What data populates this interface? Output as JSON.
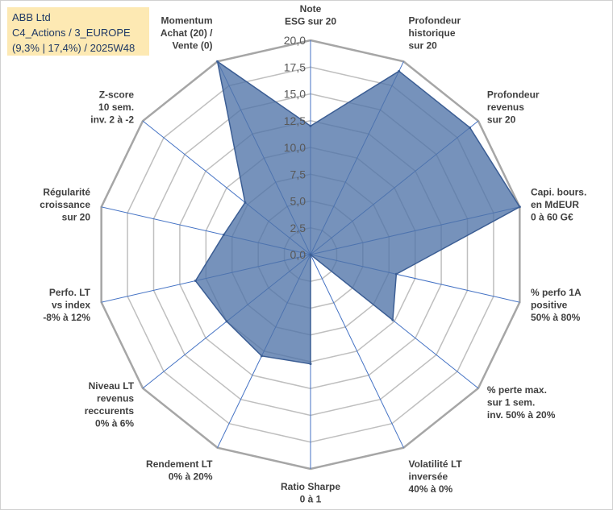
{
  "chart_data": {
    "type": "radar",
    "title_lines": [
      "ABB Ltd",
      "C4_Actions / 3_EUROPE",
      "(9,3% | 17,4%) / 2025W48"
    ],
    "axes": [
      [
        "Note",
        "ESG sur 20"
      ],
      [
        "Profondeur",
        "historique",
        "sur 20"
      ],
      [
        "Profondeur",
        "revenus",
        "sur 20"
      ],
      [
        "Capi. bours.",
        "en MdEUR",
        "0 à 60 G€"
      ],
      [
        "% perfo 1A",
        "positive",
        "50% à 80%"
      ],
      [
        "% perte max.",
        "sur 1 sem.",
        "inv. 50% à 20%"
      ],
      [
        "Volatilité LT",
        "inversée",
        "40% à 0%"
      ],
      [
        "Ratio Sharpe",
        "0 à 1"
      ],
      [
        "Rendement LT",
        "0% à 20%"
      ],
      [
        "Niveau LT",
        "revenus",
        "reccurents",
        "0% à 6%"
      ],
      [
        "Perfo. LT",
        "vs index",
        "-8% à 12%"
      ],
      [
        "Régularité",
        "croissance",
        "sur 20"
      ],
      [
        "Z-score",
        "10 sem.",
        "inv. 2 à -2"
      ],
      [
        "Momentum",
        "Achat (20) /",
        "Vente (0)"
      ]
    ],
    "values": [
      12.0,
      19.0,
      19.0,
      20.0,
      8.2,
      9.8,
      0.0,
      10.2,
      10.5,
      10.0,
      11.0,
      8.3,
      7.8,
      20.0
    ],
    "ylim": [
      0,
      20
    ],
    "ticks": [
      "0,0",
      "2,5",
      "5,0",
      "7,5",
      "10,0",
      "12,5",
      "15,0",
      "17,5",
      "20,0"
    ],
    "colors": {
      "fill": "#4f73a8",
      "stroke": "#3c5e94",
      "grid": "#bfbfbf",
      "outer": "#a6a6a6",
      "spoke": "#4472c4"
    }
  }
}
